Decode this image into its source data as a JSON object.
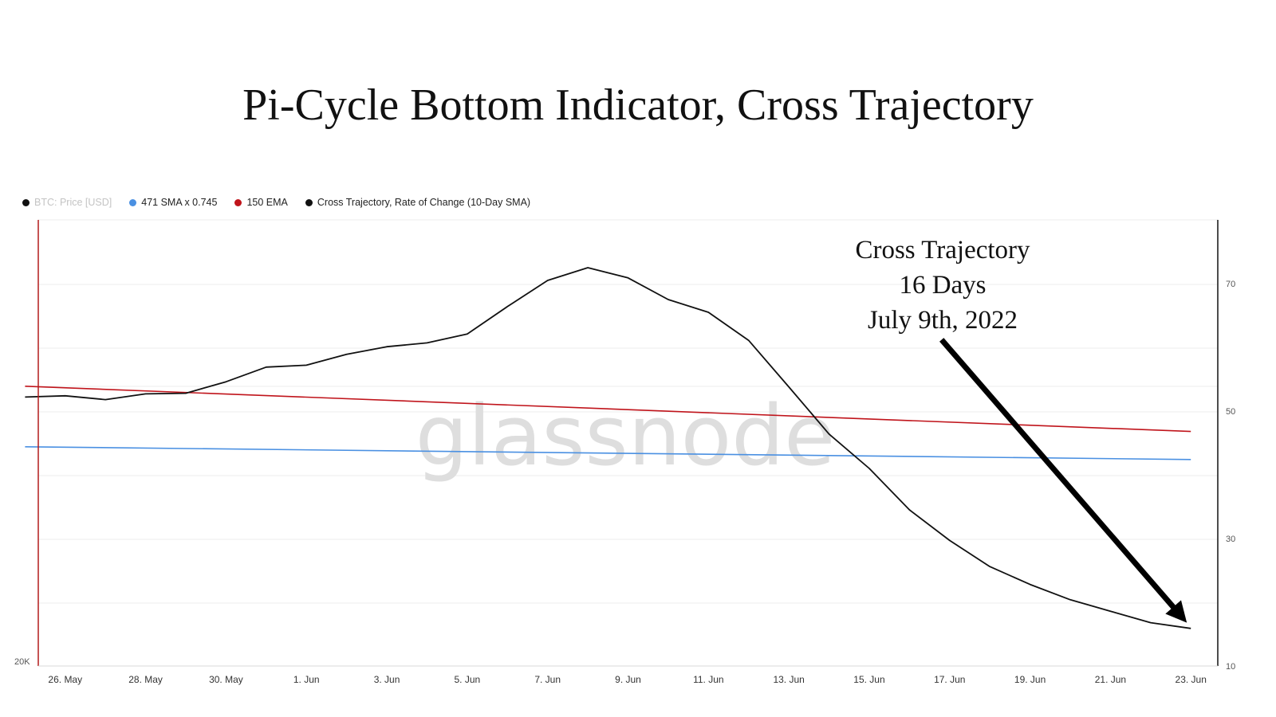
{
  "chart_data": {
    "type": "line",
    "title": "Pi-Cycle Bottom Indicator, Cross Trajectory",
    "watermark": "glassnode",
    "legend": [
      {
        "label": "BTC: Price [USD]",
        "color": "#111111",
        "muted": true
      },
      {
        "label": "471 SMA x 0.745",
        "color": "#4a90e2"
      },
      {
        "label": "150 EMA",
        "color": "#c0141b"
      },
      {
        "label": "Cross Trajectory, Rate of Change (10-Day SMA)",
        "color": "#111111"
      }
    ],
    "x_tick_labels": [
      "26. May",
      "28. May",
      "30. May",
      "1. Jun",
      "3. Jun",
      "5. Jun",
      "7. Jun",
      "9. Jun",
      "11. Jun",
      "13. Jun",
      "15. Jun",
      "17. Jun",
      "19. Jun",
      "21. Jun",
      "23. Jun"
    ],
    "x_range_days": [
      -0.67,
      28.67
    ],
    "y_right_ticks": [
      "10",
      "30",
      "50",
      "70"
    ],
    "y_right_range": [
      10,
      80
    ],
    "y_left_label": "20K",
    "series": [
      {
        "name": "Cross Trajectory, Rate of Change (10-Day SMA)",
        "color": "#111111",
        "x": [
          -1,
          0,
          1,
          2,
          3,
          4,
          5,
          6,
          7,
          8,
          9,
          10,
          11,
          12,
          13,
          14,
          15,
          16,
          17,
          18,
          19,
          20,
          21,
          22,
          23,
          24,
          25,
          26,
          27,
          28
        ],
        "values": [
          52.2,
          52.4,
          51.8,
          52.7,
          52.8,
          54.6,
          56.9,
          57.2,
          58.9,
          60.1,
          60.7,
          62.1,
          66.4,
          70.5,
          72.5,
          70.9,
          67.5,
          65.5,
          61.1,
          53.8,
          46.4,
          41.0,
          34.5,
          29.7,
          25.6,
          22.8,
          20.4,
          18.6,
          16.8,
          15.9
        ]
      },
      {
        "name": "150 EMA",
        "color": "#c0141b",
        "x": [
          -1,
          28
        ],
        "values": [
          53.9,
          46.8
        ]
      },
      {
        "name": "471 SMA x 0.745",
        "color": "#4a90e2",
        "x": [
          -1,
          28
        ],
        "values": [
          44.4,
          42.4
        ]
      }
    ],
    "annotation": {
      "lines": [
        "Cross Trajectory",
        "16 Days",
        "July 9th, 2022"
      ],
      "arrow_from": {
        "day": 21.8,
        "value": 61.2
      },
      "arrow_to": {
        "day": 27.9,
        "value": 16.8
      }
    }
  }
}
